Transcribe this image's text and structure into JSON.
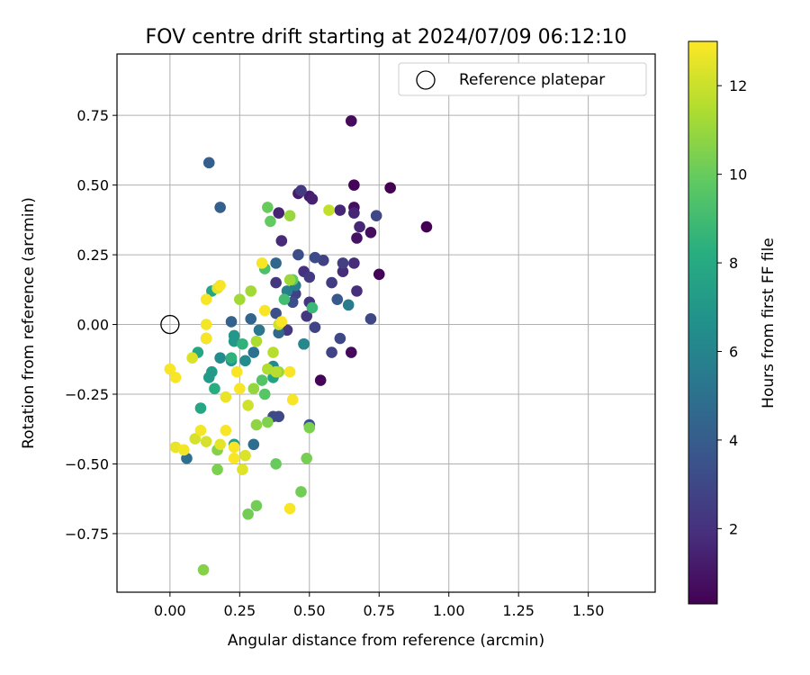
{
  "chart_data": {
    "type": "scatter",
    "title": "FOV centre drift starting at 2024/07/09 06:12:10",
    "xlabel": "Angular distance from reference (arcmin)",
    "ylabel": "Rotation from reference (arcmin)",
    "xlim": [
      -0.19,
      1.74
    ],
    "ylim": [
      -0.96,
      0.97
    ],
    "xticks": [
      0.0,
      0.25,
      0.5,
      0.75,
      1.0,
      1.25,
      1.5
    ],
    "xtick_labels": [
      "0.00",
      "0.25",
      "0.50",
      "0.75",
      "1.00",
      "1.25",
      "1.50"
    ],
    "yticks": [
      -0.75,
      -0.5,
      -0.25,
      0.0,
      0.25,
      0.5,
      0.75
    ],
    "ytick_labels": [
      "−0.75",
      "−0.50",
      "−0.25",
      "0.00",
      "0.25",
      "0.50",
      "0.75"
    ],
    "grid": true,
    "legend": {
      "position": "top-right",
      "entries": [
        "Reference platepar"
      ]
    },
    "colorbar": {
      "label": "Hours from first FF file",
      "colormap": "viridis",
      "range": [
        0.3,
        13.0
      ],
      "ticks": [
        2,
        4,
        6,
        8,
        10,
        12
      ],
      "tick_labels": [
        "2",
        "4",
        "6",
        "8",
        "10",
        "12"
      ]
    },
    "reference_point": {
      "name": "Reference platepar",
      "x": 0.0,
      "y": 0.0
    },
    "series": [
      {
        "points": [
          [
            0.65,
            0.73,
            0.6
          ],
          [
            0.66,
            0.5,
            0.4
          ],
          [
            0.79,
            0.49,
            0.3
          ],
          [
            0.92,
            0.35,
            0.3
          ],
          [
            0.54,
            -0.2,
            0.4
          ],
          [
            0.75,
            0.18,
            0.4
          ],
          [
            0.65,
            -0.1,
            0.6
          ],
          [
            0.66,
            0.42,
            0.8
          ],
          [
            0.72,
            0.33,
            0.8
          ],
          [
            0.67,
            0.31,
            0.9
          ],
          [
            0.46,
            0.47,
            1.2
          ],
          [
            0.5,
            0.46,
            1.2
          ],
          [
            0.51,
            0.45,
            1.4
          ],
          [
            0.39,
            0.4,
            1.5
          ],
          [
            0.4,
            0.3,
            1.7
          ],
          [
            0.61,
            0.41,
            1.6
          ],
          [
            0.68,
            0.35,
            1.6
          ],
          [
            0.66,
            0.4,
            1.6
          ],
          [
            0.62,
            0.19,
            1.8
          ],
          [
            0.66,
            0.22,
            1.8
          ],
          [
            0.67,
            0.12,
            1.9
          ],
          [
            0.48,
            0.19,
            2.0
          ],
          [
            0.5,
            0.08,
            2.1
          ],
          [
            0.38,
            0.15,
            2.2
          ],
          [
            0.49,
            0.03,
            2.2
          ],
          [
            0.42,
            -0.02,
            2.3
          ],
          [
            0.47,
            0.48,
            2.4
          ],
          [
            0.5,
            0.17,
            2.4
          ],
          [
            0.58,
            0.15,
            2.5
          ],
          [
            0.62,
            0.22,
            2.6
          ],
          [
            0.55,
            0.23,
            2.7
          ],
          [
            0.45,
            0.11,
            2.7
          ],
          [
            0.52,
            -0.01,
            2.8
          ],
          [
            0.58,
            -0.1,
            2.8
          ],
          [
            0.74,
            0.39,
            3.0
          ],
          [
            0.72,
            0.02,
            3.0
          ],
          [
            0.61,
            -0.05,
            3.0
          ],
          [
            0.39,
            -0.33,
            3.1
          ],
          [
            0.37,
            -0.33,
            3.1
          ],
          [
            0.52,
            0.24,
            3.2
          ],
          [
            0.44,
            0.08,
            3.3
          ],
          [
            0.46,
            0.25,
            3.3
          ],
          [
            0.38,
            0.04,
            3.4
          ],
          [
            0.5,
            -0.36,
            3.4
          ],
          [
            0.48,
            -0.07,
            3.6
          ],
          [
            0.6,
            0.09,
            3.8
          ],
          [
            0.14,
            0.58,
            4.1
          ],
          [
            0.18,
            0.42,
            4.1
          ],
          [
            0.22,
            0.01,
            4.3
          ],
          [
            0.29,
            0.02,
            4.4
          ],
          [
            0.38,
            0.22,
            4.5
          ],
          [
            0.39,
            -0.03,
            4.6
          ],
          [
            0.3,
            -0.43,
            4.8
          ],
          [
            0.06,
            -0.48,
            4.9
          ],
          [
            0.3,
            -0.1,
            5.0
          ],
          [
            0.32,
            -0.02,
            5.3
          ],
          [
            0.64,
            0.07,
            5.5
          ],
          [
            0.45,
            0.14,
            5.6
          ],
          [
            0.42,
            0.12,
            5.8
          ],
          [
            0.48,
            -0.07,
            6.2
          ],
          [
            0.37,
            -0.15,
            6.3
          ],
          [
            0.27,
            -0.13,
            6.4
          ],
          [
            0.18,
            -0.12,
            6.4
          ],
          [
            0.13,
            -0.05,
            6.6
          ],
          [
            0.22,
            -0.13,
            6.8
          ],
          [
            0.23,
            -0.04,
            7.0
          ],
          [
            0.23,
            -0.06,
            7.0
          ],
          [
            0.15,
            -0.17,
            7.2
          ],
          [
            0.14,
            -0.19,
            7.2
          ],
          [
            0.23,
            -0.43,
            7.3
          ],
          [
            0.37,
            -0.19,
            7.5
          ],
          [
            0.15,
            0.12,
            7.7
          ],
          [
            0.1,
            -0.1,
            7.8
          ],
          [
            0.11,
            -0.3,
            7.8
          ],
          [
            0.16,
            -0.23,
            8.2
          ],
          [
            0.22,
            -0.12,
            8.4
          ],
          [
            0.26,
            -0.07,
            8.5
          ],
          [
            0.51,
            0.06,
            8.8
          ],
          [
            0.41,
            0.09,
            9.1
          ],
          [
            0.34,
            0.2,
            9.3
          ],
          [
            0.33,
            -0.2,
            9.5
          ],
          [
            0.34,
            -0.25,
            9.6
          ],
          [
            0.44,
            0.16,
            9.8
          ],
          [
            0.36,
            0.37,
            9.9
          ],
          [
            0.35,
            0.42,
            10.0
          ],
          [
            0.38,
            -0.5,
            10.0
          ],
          [
            0.31,
            -0.65,
            10.2
          ],
          [
            0.28,
            -0.68,
            10.2
          ],
          [
            0.47,
            -0.6,
            10.2
          ],
          [
            0.49,
            -0.48,
            10.3
          ],
          [
            0.5,
            -0.37,
            10.4
          ],
          [
            0.35,
            -0.35,
            10.5
          ],
          [
            0.17,
            -0.52,
            10.4
          ],
          [
            0.17,
            -0.45,
            10.6
          ],
          [
            0.12,
            -0.88,
            10.6
          ],
          [
            0.31,
            -0.36,
            10.8
          ],
          [
            0.3,
            -0.23,
            10.9
          ],
          [
            0.39,
            -0.17,
            11.0
          ],
          [
            0.43,
            0.39,
            11.0
          ],
          [
            0.43,
            0.16,
            11.1
          ],
          [
            0.25,
            0.09,
            11.2
          ],
          [
            0.29,
            0.12,
            11.2
          ],
          [
            0.31,
            -0.06,
            11.4
          ],
          [
            0.35,
            -0.16,
            11.5
          ],
          [
            0.37,
            -0.1,
            11.6
          ],
          [
            0.38,
            -0.17,
            11.6
          ],
          [
            0.57,
            0.41,
            11.8
          ],
          [
            0.39,
            0.0,
            12.0
          ],
          [
            0.28,
            -0.29,
            12.1
          ],
          [
            0.27,
            -0.47,
            12.3
          ],
          [
            0.26,
            -0.52,
            12.4
          ],
          [
            0.13,
            -0.42,
            12.2
          ],
          [
            0.09,
            -0.41,
            12.2
          ],
          [
            0.08,
            -0.12,
            12.3
          ],
          [
            0.17,
            0.13,
            12.4
          ],
          [
            0.18,
            -0.43,
            12.5
          ],
          [
            0.2,
            -0.26,
            12.6
          ],
          [
            0.02,
            -0.44,
            12.6
          ],
          [
            0.05,
            -0.45,
            12.8
          ],
          [
            0.11,
            -0.38,
            12.8
          ],
          [
            0.13,
            0.0,
            12.8
          ],
          [
            0.13,
            0.09,
            12.9
          ],
          [
            0.13,
            -0.05,
            12.9
          ],
          [
            0.2,
            -0.38,
            12.9
          ],
          [
            0.23,
            -0.44,
            12.9
          ],
          [
            0.23,
            -0.48,
            12.9
          ],
          [
            0.25,
            -0.23,
            12.9
          ],
          [
            0.24,
            -0.17,
            12.9
          ],
          [
            0.33,
            0.22,
            12.9
          ],
          [
            0.34,
            0.05,
            12.9
          ],
          [
            0.4,
            0.01,
            12.9
          ],
          [
            0.43,
            -0.17,
            12.9
          ],
          [
            0.44,
            -0.27,
            12.9
          ],
          [
            0.43,
            -0.66,
            12.9
          ],
          [
            0.0,
            -0.16,
            12.9
          ],
          [
            0.02,
            -0.19,
            12.9
          ],
          [
            0.18,
            0.14,
            12.9
          ]
        ]
      }
    ]
  }
}
